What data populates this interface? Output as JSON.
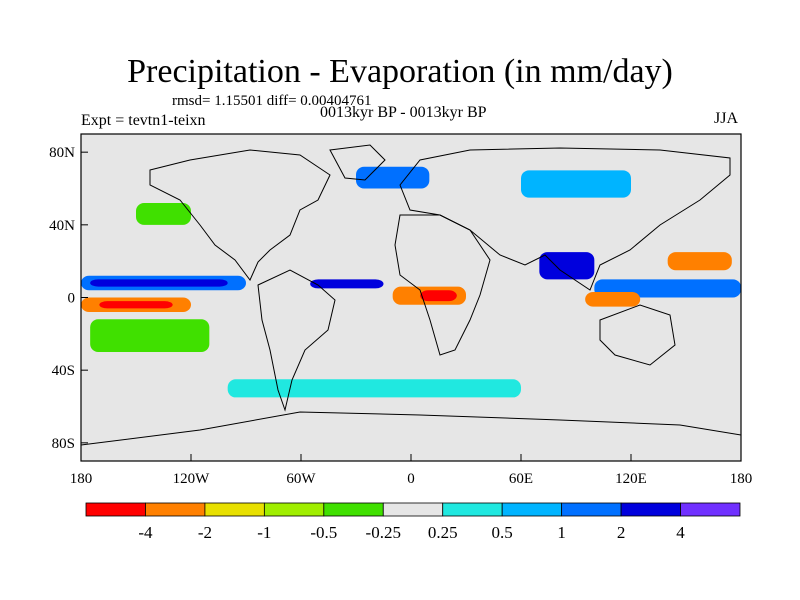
{
  "title": "Precipitation - Evaporation (in mm/day)",
  "stats": "rmsd= 1.15501  diff= 0.00404761",
  "period": "0013kyr BP - 0013kyr BP",
  "experiment": "Expt = tevtn1-teixn",
  "season": "JJA",
  "axes": {
    "x_ticks": [
      {
        "lon": -180,
        "label": "180"
      },
      {
        "lon": -120,
        "label": "120W"
      },
      {
        "lon": -60,
        "label": "60W"
      },
      {
        "lon": 0,
        "label": "0"
      },
      {
        "lon": 60,
        "label": "60E"
      },
      {
        "lon": 120,
        "label": "120E"
      },
      {
        "lon": 180,
        "label": "180"
      }
    ],
    "y_ticks": [
      {
        "lat": 80,
        "label": "80N"
      },
      {
        "lat": 40,
        "label": "40N"
      },
      {
        "lat": 0,
        "label": "0"
      },
      {
        "lat": -40,
        "label": "40S"
      },
      {
        "lat": -80,
        "label": "80S"
      }
    ]
  },
  "colorbar": {
    "colors": [
      "#ff0000",
      "#ff8000",
      "#e8e000",
      "#a0ee00",
      "#40e000",
      "#e6e6e6",
      "#20e8e0",
      "#00b4ff",
      "#0070ff",
      "#0000dd",
      "#7030ff"
    ],
    "labels": [
      "-4",
      "-2",
      "-1",
      "-0.5",
      "-0.25",
      "0.25",
      "0.5",
      "1",
      "2",
      "4"
    ]
  },
  "regions": [
    {
      "name": "itcz-pacific",
      "color": "#0070ff",
      "lon": [
        -180,
        -90
      ],
      "lat": [
        4,
        12
      ]
    },
    {
      "name": "itcz-pacific-core",
      "color": "#0000dd",
      "lon": [
        -175,
        -100
      ],
      "lat": [
        6,
        10
      ]
    },
    {
      "name": "itcz-atlantic",
      "color": "#0000dd",
      "lon": [
        -55,
        -15
      ],
      "lat": [
        5,
        10
      ]
    },
    {
      "name": "subtropic-pacific-south",
      "color": "#ff8000",
      "lon": [
        -180,
        -120
      ],
      "lat": [
        -8,
        0
      ]
    },
    {
      "name": "subtropic-pacific-south-core",
      "color": "#ff0000",
      "lon": [
        -170,
        -130
      ],
      "lat": [
        -6,
        -2
      ]
    },
    {
      "name": "africa-sahel",
      "color": "#ff8000",
      "lon": [
        -10,
        30
      ],
      "lat": [
        -4,
        6
      ]
    },
    {
      "name": "africa-core",
      "color": "#ff0000",
      "lon": [
        5,
        25
      ],
      "lat": [
        -2,
        4
      ]
    },
    {
      "name": "south-pacific-green",
      "color": "#40e000",
      "lon": [
        -175,
        -110
      ],
      "lat": [
        -30,
        -12
      ]
    },
    {
      "name": "indian-monsoon",
      "color": "#0000dd",
      "lon": [
        70,
        100
      ],
      "lat": [
        10,
        25
      ]
    },
    {
      "name": "west-pacific",
      "color": "#0070ff",
      "lon": [
        100,
        180
      ],
      "lat": [
        0,
        10
      ]
    },
    {
      "name": "nw-pacific-orange",
      "color": "#ff8000",
      "lon": [
        140,
        175
      ],
      "lat": [
        15,
        25
      ]
    },
    {
      "name": "indonesia-orange",
      "color": "#ff8000",
      "lon": [
        95,
        125
      ],
      "lat": [
        -5,
        3
      ]
    },
    {
      "name": "southern-ocean-cyan",
      "color": "#20e8e0",
      "lon": [
        -100,
        60
      ],
      "lat": [
        -55,
        -45
      ]
    },
    {
      "name": "north-atlantic-blue",
      "color": "#0070ff",
      "lon": [
        -30,
        10
      ],
      "lat": [
        60,
        72
      ]
    },
    {
      "name": "north-pacific-green",
      "color": "#40e000",
      "lon": [
        -150,
        -120
      ],
      "lat": [
        40,
        52
      ]
    },
    {
      "name": "siberia-blue",
      "color": "#00b4ff",
      "lon": [
        60,
        120
      ],
      "lat": [
        55,
        70
      ]
    }
  ]
}
